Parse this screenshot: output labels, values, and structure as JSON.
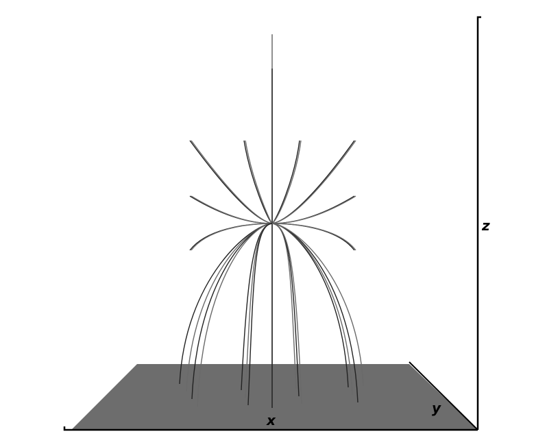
{
  "figure": {
    "axes": {
      "x_label": "x",
      "y_label": "y",
      "z_label": "z"
    },
    "colors": {
      "background": "#ffffff",
      "plane_fill": "#6d6d6d",
      "plane_edge": "#000000",
      "axis": "#000000",
      "field_line_dark": "#222222",
      "field_line_light": "#6a6a6a"
    }
  }
}
